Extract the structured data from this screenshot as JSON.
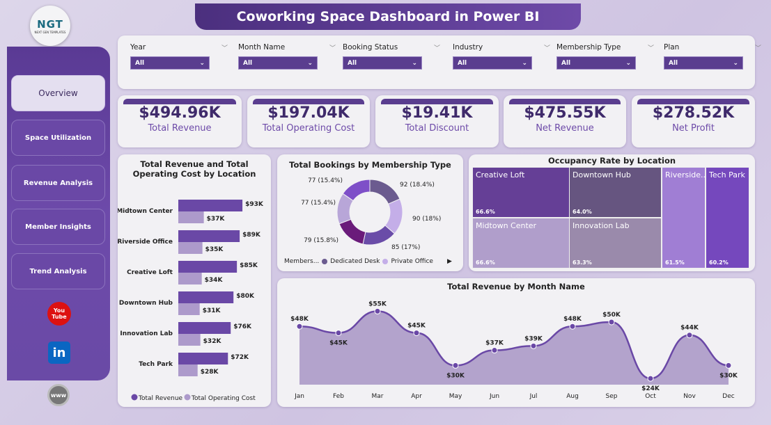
{
  "title": "Coworking Space Dashboard in Power BI",
  "logo": {
    "text": "NGT",
    "subtext": "NEXT GEN TEMPLATES"
  },
  "nav": [
    {
      "label": "Overview",
      "active": true
    },
    {
      "label": "Space Utilization"
    },
    {
      "label": "Revenue Analysis"
    },
    {
      "label": "Member Insights"
    },
    {
      "label": "Trend Analysis"
    }
  ],
  "social": {
    "youtube": "You Tube",
    "linkedin": "in",
    "web": "www"
  },
  "filters": [
    {
      "label": "Year",
      "value": "All"
    },
    {
      "label": "Month Name",
      "value": "All"
    },
    {
      "label": "Booking Status",
      "value": "All"
    },
    {
      "label": "Industry",
      "value": "All"
    },
    {
      "label": "Membership Type",
      "value": "All"
    },
    {
      "label": "Plan",
      "value": "All"
    }
  ],
  "kpis": [
    {
      "value": "$494.96K",
      "label": "Total Revenue"
    },
    {
      "value": "$197.04K",
      "label": "Total Operating Cost"
    },
    {
      "value": "$19.41K",
      "label": "Total Discount"
    },
    {
      "value": "$475.55K",
      "label": "Net Revenue"
    },
    {
      "value": "$278.52K",
      "label": "Net Profit"
    }
  ],
  "colors": {
    "primary": "#5a3d8f",
    "revenue": "#6a48a6",
    "cost": "#ad9acb"
  },
  "chart_data": [
    {
      "type": "bar",
      "orientation": "horizontal",
      "title": "Total Revenue and Total Operating Cost by Location",
      "categories": [
        "Midtown Center",
        "Riverside Office",
        "Creative Loft",
        "Downtown Hub",
        "Innovation Lab",
        "Tech Park"
      ],
      "series": [
        {
          "name": "Total Revenue",
          "values": [
            93,
            89,
            85,
            80,
            76,
            72
          ],
          "labels": [
            "$93K",
            "$89K",
            "$85K",
            "$80K",
            "$76K",
            "$72K"
          ]
        },
        {
          "name": "Total Operating Cost",
          "values": [
            37,
            35,
            34,
            31,
            32,
            28
          ],
          "labels": [
            "$37K",
            "$35K",
            "$34K",
            "$31K",
            "$32K",
            "$28K"
          ]
        }
      ],
      "unit": "$K",
      "legend": "bottom"
    },
    {
      "type": "pie",
      "donut": true,
      "title": "Total Bookings by Membership Type",
      "legend_title": "Members...",
      "legend": [
        "Dedicated Desk",
        "Private Office"
      ],
      "slices": [
        {
          "value": 92,
          "label": "92 (18.4%)",
          "color": "#6b5b8f"
        },
        {
          "value": 90,
          "label": "90 (18%)",
          "color": "#c4aee8"
        },
        {
          "value": 85,
          "label": "85 (17%)",
          "color": "#6a4ca8"
        },
        {
          "value": 79,
          "label": "79 (15.8%)",
          "color": "#6a1b7a"
        },
        {
          "value": 77,
          "label": "77 (15.4%)",
          "color": "#b8a6d8"
        },
        {
          "value": 77,
          "label": "77 (15.4%)",
          "color": "#7e4fc8"
        }
      ]
    },
    {
      "type": "treemap",
      "title": "Occupancy Rate by Location",
      "items": [
        {
          "name": "Creative Loft",
          "value": "66.6%",
          "color": "#653f96"
        },
        {
          "name": "Downtown Hub",
          "value": "64.0%",
          "color": "#665580"
        },
        {
          "name": "Midtown Center",
          "value": "66.6%",
          "color": "#b09ecb"
        },
        {
          "name": "Innovation Lab",
          "value": "63.3%",
          "color": "#9a8aab"
        },
        {
          "name": "Riverside...",
          "value": "61.5%",
          "color": "#a07ed4"
        },
        {
          "name": "Tech Park",
          "value": "60.2%",
          "color": "#7548bd"
        }
      ]
    },
    {
      "type": "area",
      "title": "Total Revenue by Month Name",
      "categories": [
        "Jan",
        "Feb",
        "Mar",
        "Apr",
        "May",
        "Jun",
        "Jul",
        "Aug",
        "Sep",
        "Oct",
        "Nov",
        "Dec"
      ],
      "values": [
        48,
        45,
        55,
        45,
        30,
        37,
        39,
        48,
        50,
        24,
        44,
        30
      ],
      "labels": [
        "$48K",
        "$45K",
        "$55K",
        "$45K",
        "$30K",
        "$37K",
        "$39K",
        "$48K",
        "$50K",
        "$24K",
        "$44K",
        "$30K"
      ],
      "unit": "$K"
    }
  ]
}
